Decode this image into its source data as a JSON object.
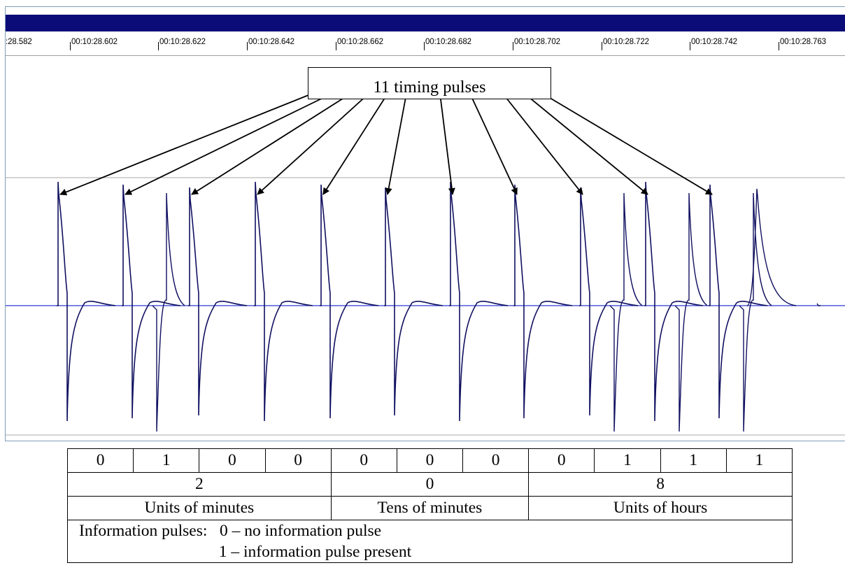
{
  "ruler": {
    "labels": [
      ":28.582",
      "00:10:28.602",
      "00:10:28.622",
      "00:10:28.642",
      "00:10:28.662",
      "00:10:28.682",
      "00:10:28.702",
      "00:10:28.722",
      "00:10:28.742",
      "00:10:28.763"
    ]
  },
  "callout": {
    "text": "11 timing pulses"
  },
  "colors": {
    "title_bar": "#0c0c78",
    "waveform": "#101060",
    "baseline": "#2a3ad0",
    "gridline": "#a9a9a9"
  },
  "table": {
    "bits": [
      "0",
      "1",
      "0",
      "0",
      "0",
      "0",
      "0",
      "0",
      "1",
      "1",
      "1"
    ],
    "digits": [
      {
        "value": "2",
        "label": "Units of minutes"
      },
      {
        "value": "0",
        "label": "Tens of minutes"
      },
      {
        "value": "8",
        "label": "Units of hours"
      }
    ],
    "legend_line1": "Information pulses:   0 – no information pulse",
    "legend_line2": "                                  1 – information pulse present"
  }
}
